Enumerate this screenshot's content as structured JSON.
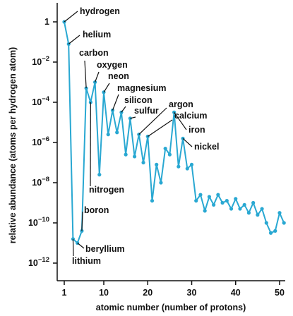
{
  "chart_data": {
    "type": "line",
    "title": "",
    "xlabel": "atomic number (number of protons)",
    "ylabel": "relative abundance (atoms per hydrogen atom)",
    "xlim": [
      0,
      52
    ],
    "ylim_log10": [
      -12.4,
      0.8
    ],
    "y_scale": "log",
    "color": "#29a8d2",
    "x_ticks": [
      1,
      10,
      20,
      30,
      40,
      50
    ],
    "y_ticks": [
      {
        "exp": 0,
        "base": "1",
        "sup": ""
      },
      {
        "exp": -2,
        "base": "10",
        "sup": "−2"
      },
      {
        "exp": -4,
        "base": "10",
        "sup": "−4"
      },
      {
        "exp": -6,
        "base": "10",
        "sup": "−6"
      },
      {
        "exp": -8,
        "base": "10",
        "sup": "−8"
      },
      {
        "exp": -10,
        "base": "10",
        "sup": "−10"
      },
      {
        "exp": -12,
        "base": "10",
        "sup": "−12"
      }
    ],
    "series": [
      {
        "x": [
          1,
          2,
          3,
          4,
          5,
          6,
          7,
          8,
          9,
          10,
          11,
          12,
          13,
          14,
          15,
          16,
          17,
          18,
          19,
          20,
          21,
          22,
          23,
          24,
          25,
          26,
          27,
          28,
          29,
          30,
          31,
          32,
          33,
          34,
          35,
          36,
          37,
          38,
          39,
          40,
          41,
          42,
          43,
          44,
          45,
          46,
          47,
          48,
          49,
          50,
          51
        ],
        "log10_y": [
          0.0,
          -1.1,
          -10.8,
          -11.0,
          -10.4,
          -3.3,
          -4.0,
          -3.0,
          -7.6,
          -3.5,
          -5.6,
          -4.4,
          -5.5,
          -4.5,
          -6.6,
          -4.8,
          -6.7,
          -5.6,
          -7.0,
          -5.7,
          -8.9,
          -7.1,
          -8.0,
          -6.3,
          -6.6,
          -4.5,
          -7.2,
          -5.8,
          -7.3,
          -7.1,
          -8.9,
          -8.6,
          -9.4,
          -8.7,
          -9.1,
          -8.6,
          -9.0,
          -8.9,
          -9.3,
          -8.8,
          -9.3,
          -9.1,
          -9.5,
          -9.0,
          -9.6,
          -9.3,
          -10.0,
          -10.5,
          -10.4,
          -9.5,
          -10.0
        ]
      }
    ],
    "annotations": [
      {
        "text": "hydrogen",
        "x": 1
      },
      {
        "text": "helium",
        "x": 2
      },
      {
        "text": "carbon",
        "x": 6
      },
      {
        "text": "oxygen",
        "x": 8
      },
      {
        "text": "neon",
        "x": 10
      },
      {
        "text": "magnesium",
        "x": 12
      },
      {
        "text": "silicon",
        "x": 14
      },
      {
        "text": "sulfur",
        "x": 16
      },
      {
        "text": "argon",
        "x": 18
      },
      {
        "text": "calcium",
        "x": 20
      },
      {
        "text": "iron",
        "x": 26
      },
      {
        "text": "nickel",
        "x": 28
      },
      {
        "text": "nitrogen",
        "x": 7
      },
      {
        "text": "boron",
        "x": 5
      },
      {
        "text": "beryllium",
        "x": 4
      },
      {
        "text": "lithium",
        "x": 3
      }
    ]
  }
}
